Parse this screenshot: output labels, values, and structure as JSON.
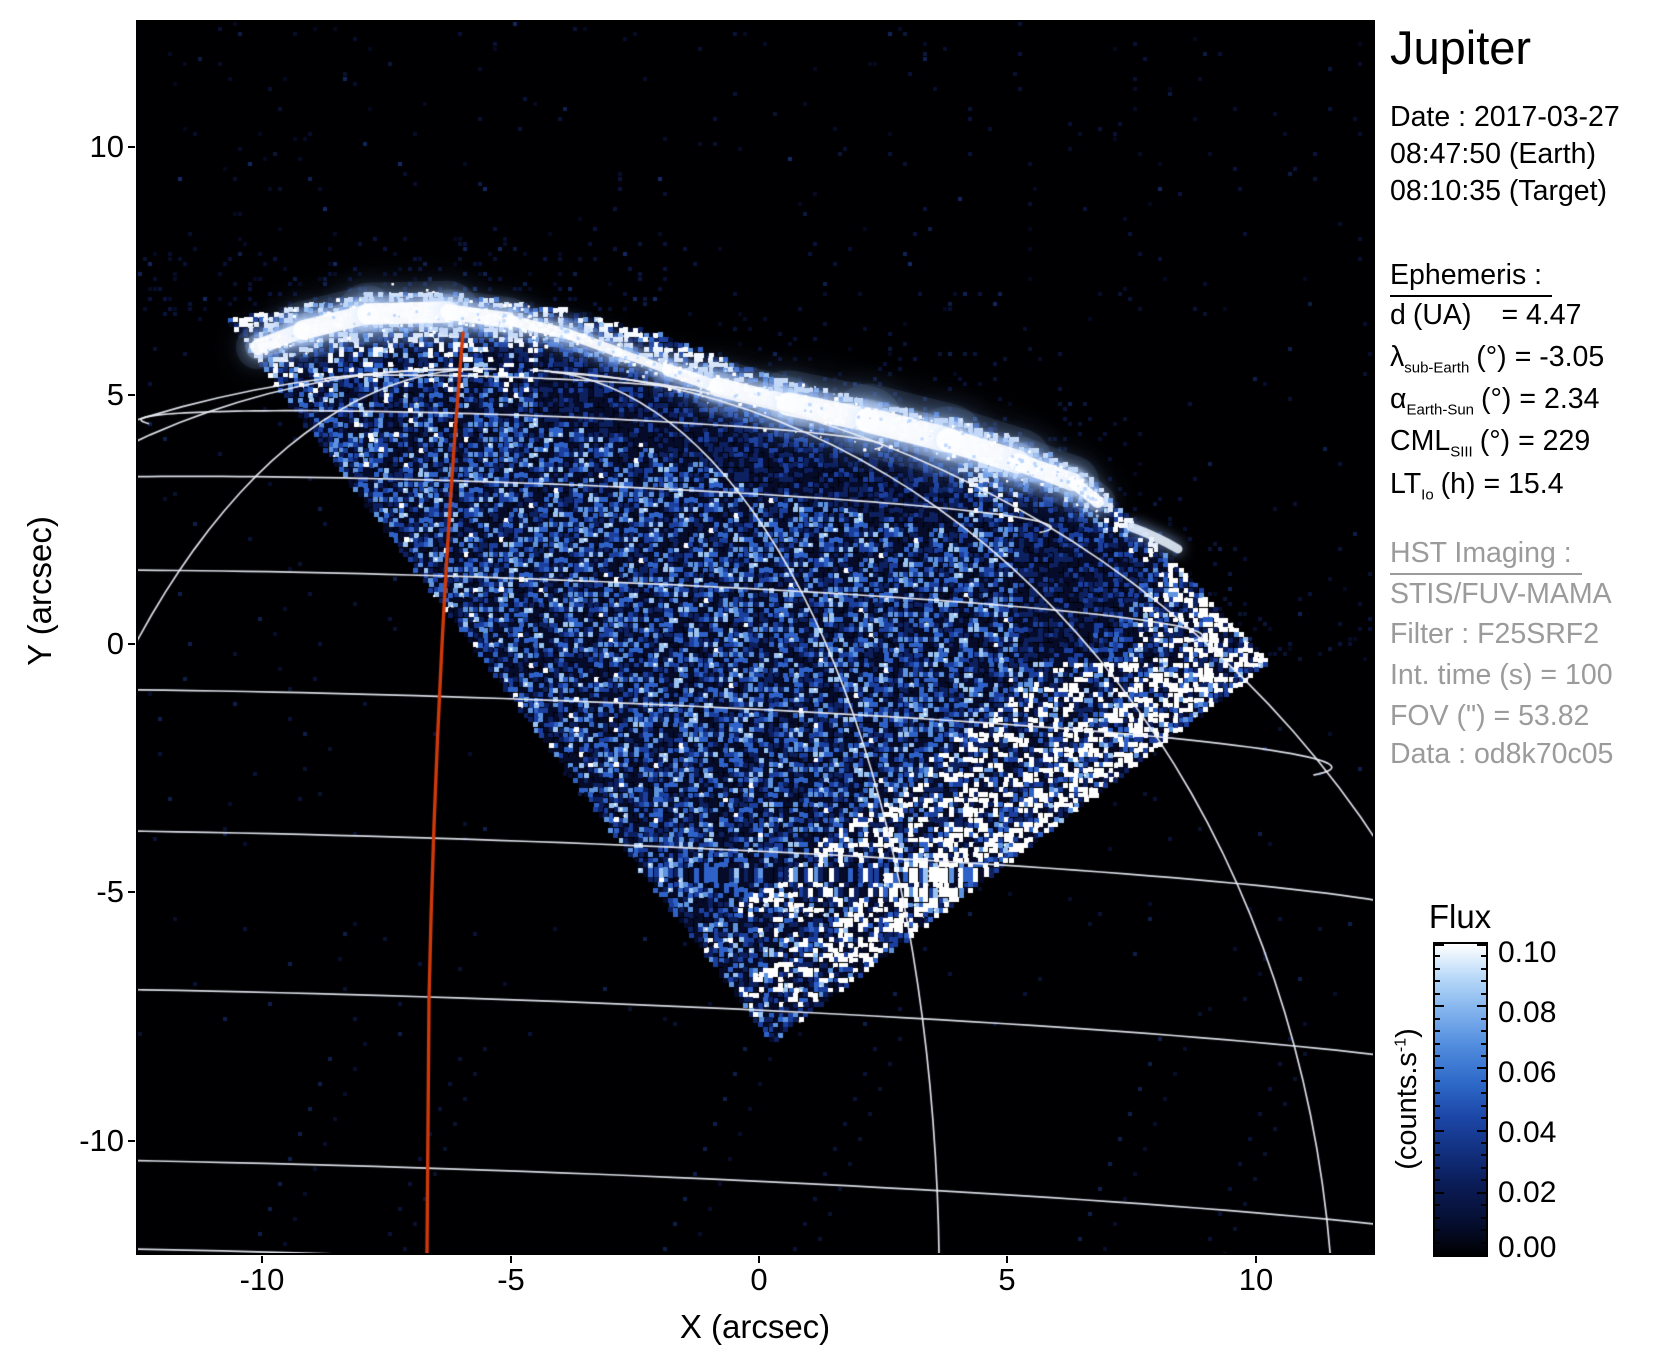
{
  "panel": {
    "title": "Jupiter",
    "date_line": "Date : 2017-03-27",
    "time_earth": "08:47:50 (Earth)",
    "time_target": "08:10:35 (Target)",
    "ephemeris": {
      "header": "Ephemeris :",
      "rows": [
        {
          "sym": "d",
          "sub": "",
          "unit": "(UA)",
          "value": "= 4.47"
        },
        {
          "sym": "λ",
          "sub": "sub-Earth",
          "unit": "(°)",
          "value": "= -3.05"
        },
        {
          "sym": "α",
          "sub": "Earth-Sun",
          "unit": "(°)",
          "value": "= 2.34"
        },
        {
          "sym": "CML",
          "sub": "SIII",
          "unit": "(°)",
          "value": "= 229"
        },
        {
          "sym": "LT",
          "sub": "Io",
          "unit": "(h)",
          "value": "= 15.4"
        }
      ]
    },
    "hst": {
      "header": "HST Imaging :",
      "lines": [
        "STIS/FUV-MAMA",
        "Filter : F25SRF2",
        "Int. time (s) = 100",
        "FOV (\") = 53.82",
        "Data : od8k70c05"
      ]
    }
  },
  "axes": {
    "x_label": "X (arcsec)",
    "y_label": "Y (arcsec)",
    "x_ticks": [
      "-10",
      "-5",
      "0",
      "5",
      "10"
    ],
    "y_ticks": [
      "10",
      "5",
      "0",
      "-5",
      "-10"
    ]
  },
  "colorbar": {
    "title": "Flux",
    "unit_pre": "(counts.s",
    "unit_sup": "-1",
    "unit_post": ")",
    "ticks": [
      "0.10",
      "0.08",
      "0.06",
      "0.04",
      "0.02",
      "0.00"
    ]
  },
  "colors": {
    "sky": "#000003",
    "sky_speckle1": "#0a1440",
    "sky_speckle2": "#142a66",
    "noise_tiers": [
      "#050b28",
      "#0d2060",
      "#1b3f9e",
      "#2f62c8",
      "#5e93e0",
      "#9cc4f2",
      "#ffffff"
    ],
    "graticule": "rgba(238,241,250,0.92)",
    "red_meridian": "#cf3a0b",
    "aurora_core": "#ffffff",
    "aurora_halo": "#9fc6ff",
    "colormap": [
      "#000002",
      "#060f33",
      "#0a1b55",
      "#12307f",
      "#1c47a8",
      "#2f6ac9",
      "#4f8add",
      "#7eb0ec",
      "#b6d8f8",
      "#ffffff"
    ]
  },
  "chart_data": {
    "type": "heatmap",
    "title": "Jupiter",
    "xlabel": "X (arcsec)",
    "ylabel": "Y (arcsec)",
    "xlim": [
      -12.5,
      12.5
    ],
    "ylim": [
      -12.5,
      12.5
    ],
    "x_tick_values": [
      -10,
      -5,
      0,
      5,
      10
    ],
    "y_tick_values": [
      10,
      5,
      0,
      -5,
      -10
    ],
    "colorbar": {
      "title": "Flux",
      "unit": "counts.s-1",
      "range": [
        0.0,
        0.1
      ],
      "tick_values": [
        0.1,
        0.08,
        0.06,
        0.04,
        0.02,
        0.0
      ]
    },
    "observation": {
      "target": "Jupiter",
      "date": "2017-03-27",
      "time_earth": "08:47:50",
      "time_target": "08:10:35",
      "d_UA": 4.47,
      "lambda_sub_earth_deg": -3.05,
      "alpha_earth_sun_deg": 2.34,
      "CML_SIII_deg": 229,
      "LT_Io_h": 15.4,
      "instrument": "STIS/FUV-MAMA",
      "filter": "F25SRF2",
      "int_time_s": 100,
      "fov_arcsec": 53.82,
      "dataset": "od8k70c05"
    },
    "features": [
      "Rotated-square STIS detector field of view filled with blue speckled FUV dayglow, lower vertex near (0.2, -8.4) arcsec, right corner near (10.3, -0.4) arcsec, left corner near (-10.7, 6.2) arcsec",
      "Bright white auroral oval arc along the planetary limb from about (-10.5, 6.1) to (7.0, 2.5) arcsec, brightest segments at (-9.5..-6.3, 5.7..6.3) and (-0.5..6.5, 4.3..3.0) arcsec",
      "Small detached auroral patch near (7.5, 2.1) arcsec",
      "White planetary latitude/longitude graticule arcs over whole disk, black sky background",
      "Red meridian line nearly vertical at x ≈ -6.3 arcsec from limb top to bottom of plot"
    ]
  }
}
